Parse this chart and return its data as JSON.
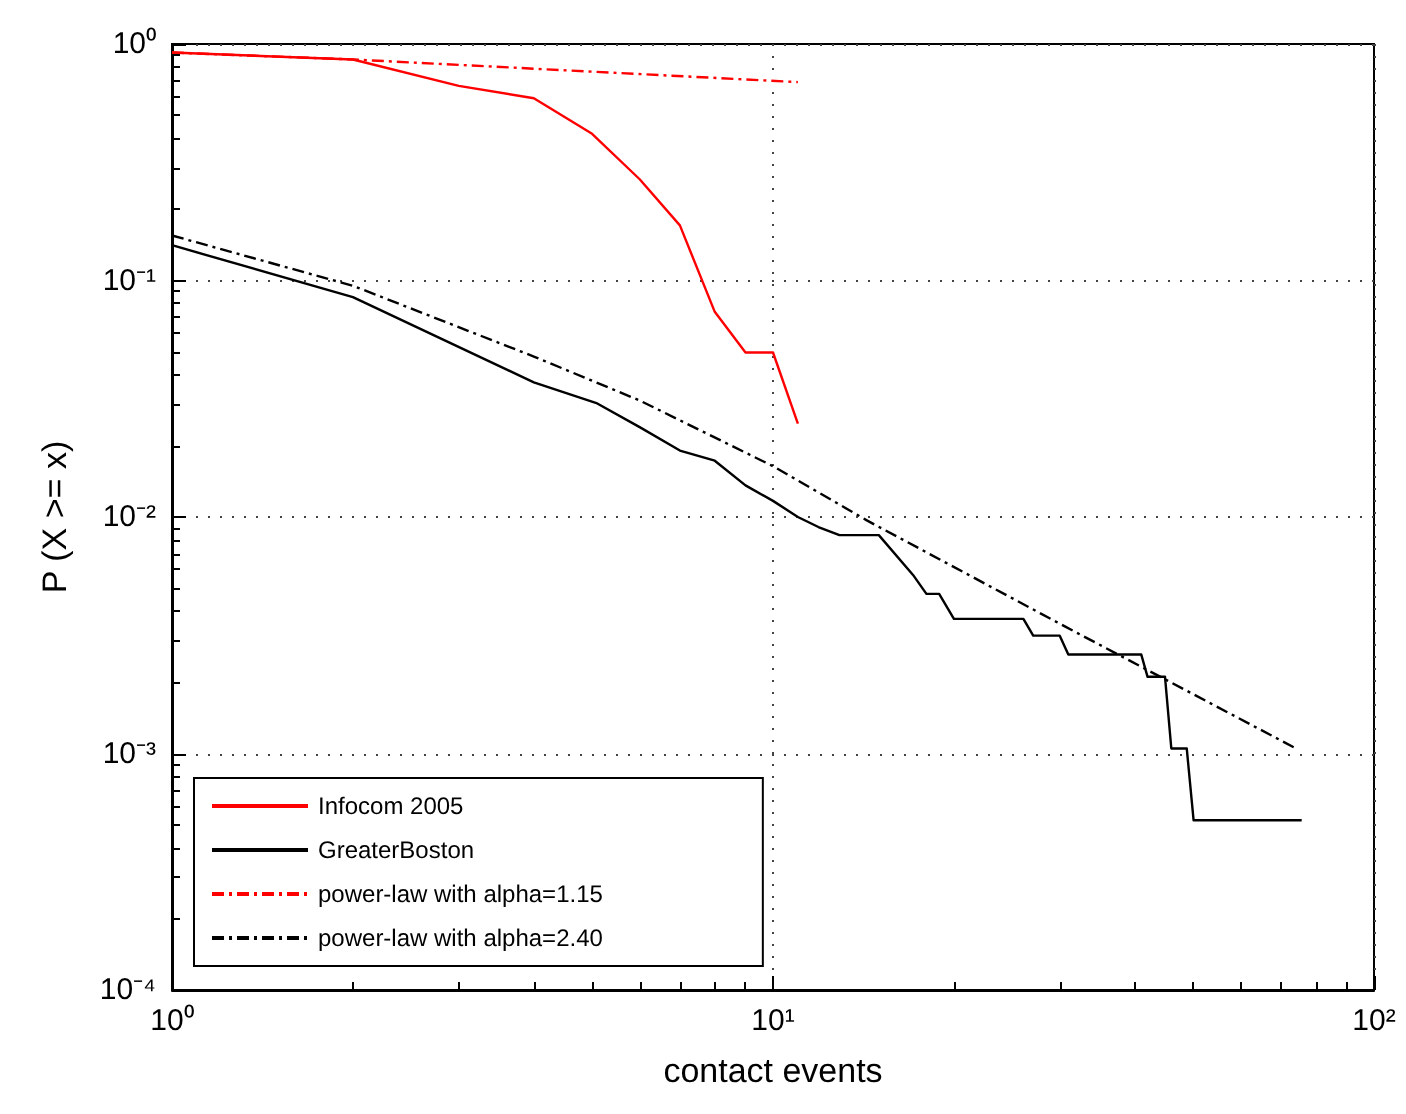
{
  "chart_data": {
    "type": "line",
    "xlabel": "contact events",
    "ylabel": "P (X >= x)",
    "log": "xy",
    "grid": true,
    "legend": "bottom left",
    "marker": "none",
    "xlim": [
      1,
      100
    ],
    "xticks": [
      {
        "value": 1,
        "label": "10⁰"
      },
      {
        "value": 10,
        "label": "10¹"
      },
      {
        "value": 100,
        "label": "10²"
      }
    ],
    "ylim": [
      0.0001,
      1
    ],
    "yticks": [
      {
        "value": 0.0001,
        "label": "10⁻⁴"
      },
      {
        "value": 0.001,
        "label": "10⁻³"
      },
      {
        "value": 0.01,
        "label": "10⁻²"
      },
      {
        "value": 0.1,
        "label": "10⁻¹"
      },
      {
        "value": 1,
        "label": "10⁰"
      }
    ],
    "series": [
      {
        "name": "Infocom 2005",
        "color": "#ff0000",
        "line_style": "solid",
        "x": [
          1,
          2,
          3,
          4,
          5,
          6,
          7,
          8,
          9,
          10,
          11
        ],
        "values": [
          0.92,
          0.86,
          0.665,
          0.59,
          0.417,
          0.268,
          0.171,
          0.0737,
          0.0496,
          0.0496,
          0.0248
        ]
      },
      {
        "name": "GreaterBoston",
        "color": "#000000",
        "line_style": "solid",
        "x": [
          1,
          2,
          4,
          5.1,
          6,
          7,
          8,
          9,
          10,
          11,
          11.9,
          12.9,
          15,
          17.1,
          18,
          18.9,
          20,
          26.1,
          27.1,
          30,
          31,
          41,
          42,
          44.9,
          46,
          48.8,
          50.1,
          75.8
        ],
        "values": [
          0.141,
          0.085,
          0.0371,
          0.0302,
          0.024,
          0.0191,
          0.0173,
          0.0136,
          0.0117,
          0.01,
          0.00907,
          0.00838,
          0.00838,
          0.00569,
          0.00473,
          0.00473,
          0.00371,
          0.00371,
          0.00315,
          0.00315,
          0.00262,
          0.00262,
          0.00211,
          0.00211,
          0.00105,
          0.00105,
          0.000522,
          0.000522
        ]
      },
      {
        "name": "power-law with alpha=1.15",
        "color": "#ff0000",
        "line_style": "dashed",
        "x": [
          1,
          2,
          11
        ],
        "values": [
          0.92,
          0.86,
          0.69
        ]
      },
      {
        "name": "power-law with alpha=2.40",
        "color": "#000000",
        "line_style": "dashed",
        "x": [
          1,
          2,
          4,
          6,
          10,
          14.3,
          30.7,
          74.2
        ],
        "values": [
          0.155,
          0.095,
          0.0477,
          0.0311,
          0.0164,
          0.0097,
          0.00343,
          0.00105
        ]
      }
    ]
  }
}
